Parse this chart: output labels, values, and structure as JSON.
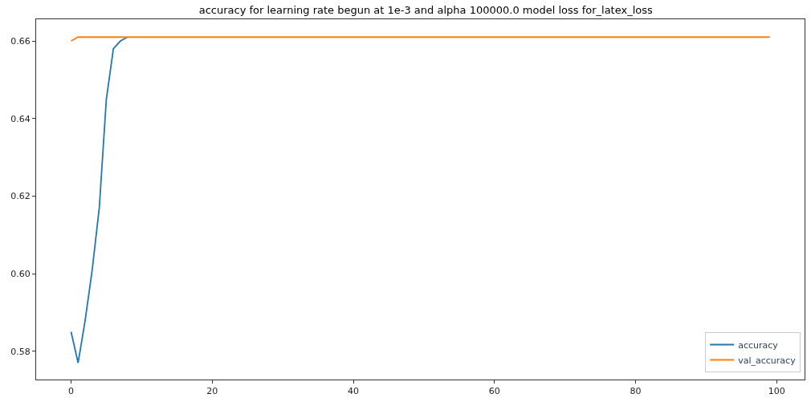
{
  "chart_data": {
    "type": "line",
    "title": "accuracy for learning rate begun at 1e-3 and alpha 100000.0 model loss for_latex_loss",
    "x": [
      0,
      1,
      2,
      3,
      4,
      5,
      6,
      7,
      8,
      9,
      10,
      11,
      12,
      13,
      14,
      15,
      16,
      17,
      18,
      19,
      20,
      21,
      22,
      23,
      24,
      25,
      26,
      27,
      28,
      29,
      30,
      31,
      32,
      33,
      34,
      35,
      36,
      37,
      38,
      39,
      40,
      41,
      42,
      43,
      44,
      45,
      46,
      47,
      48,
      49,
      50,
      51,
      52,
      53,
      54,
      55,
      56,
      57,
      58,
      59,
      60,
      61,
      62,
      63,
      64,
      65,
      66,
      67,
      68,
      69,
      70,
      71,
      72,
      73,
      74,
      75,
      76,
      77,
      78,
      79,
      80,
      81,
      82,
      83,
      84,
      85,
      86,
      87,
      88,
      89,
      90,
      91,
      92,
      93,
      94,
      95,
      96,
      97,
      98,
      99
    ],
    "series": [
      {
        "name": "accuracy",
        "color": "#1f77b4",
        "values": [
          0.585,
          0.577,
          0.588,
          0.601,
          0.617,
          0.645,
          0.658,
          0.66,
          0.661,
          null,
          null,
          null,
          null,
          null,
          null,
          null,
          null,
          null,
          null,
          null,
          null,
          null,
          null,
          null,
          null,
          null,
          null,
          null,
          null,
          null,
          null,
          null,
          null,
          null,
          null,
          null,
          null,
          null,
          null,
          null,
          null,
          null,
          null,
          null,
          null,
          null,
          null,
          null,
          null,
          null,
          null,
          null,
          null,
          null,
          null,
          null,
          null,
          null,
          null,
          null,
          null,
          null,
          null,
          null,
          null,
          null,
          null,
          null,
          null,
          null,
          null,
          null,
          null,
          null,
          null,
          null,
          null,
          null,
          null,
          null,
          null,
          null,
          null,
          null,
          null,
          null,
          null,
          null,
          null,
          null,
          null,
          null,
          null,
          null,
          null,
          null,
          null,
          null,
          null,
          null
        ]
      },
      {
        "name": "val_accuracy",
        "color": "#ff7f0e",
        "values": [
          0.66,
          0.661,
          0.661,
          0.661,
          0.661,
          0.661,
          0.661,
          0.661,
          0.661,
          0.661,
          0.661,
          0.661,
          0.661,
          0.661,
          0.661,
          0.661,
          0.661,
          0.661,
          0.661,
          0.661,
          0.661,
          0.661,
          0.661,
          0.661,
          0.661,
          0.661,
          0.661,
          0.661,
          0.661,
          0.661,
          0.661,
          0.661,
          0.661,
          0.661,
          0.661,
          0.661,
          0.661,
          0.661,
          0.661,
          0.661,
          0.661,
          0.661,
          0.661,
          0.661,
          0.661,
          0.661,
          0.661,
          0.661,
          0.661,
          0.661,
          0.661,
          0.661,
          0.661,
          0.661,
          0.661,
          0.661,
          0.661,
          0.661,
          0.661,
          0.661,
          0.661,
          0.661,
          0.661,
          0.661,
          0.661,
          0.661,
          0.661,
          0.661,
          0.661,
          0.661,
          0.661,
          0.661,
          0.661,
          0.661,
          0.661,
          0.661,
          0.661,
          0.661,
          0.661,
          0.661,
          0.661,
          0.661,
          0.661,
          0.661,
          0.661,
          0.661,
          0.661,
          0.661,
          0.661,
          0.661,
          0.661,
          0.661,
          0.661,
          0.661,
          0.661,
          0.661,
          0.661,
          0.661,
          0.661,
          0.661
        ]
      }
    ],
    "xlim": [
      -4.95,
      103.95
    ],
    "xticks": [
      0,
      20,
      40,
      60,
      80,
      100
    ],
    "ylim": [
      0.5727,
      0.6656
    ],
    "yticks": [
      {
        "value": 0.58,
        "label": "0.58"
      },
      {
        "value": 0.6,
        "label": "0.60"
      },
      {
        "value": 0.62,
        "label": "0.62"
      },
      {
        "value": 0.64,
        "label": "0.64"
      },
      {
        "value": 0.66,
        "label": "0.66"
      }
    ],
    "legend": "bottom right"
  }
}
